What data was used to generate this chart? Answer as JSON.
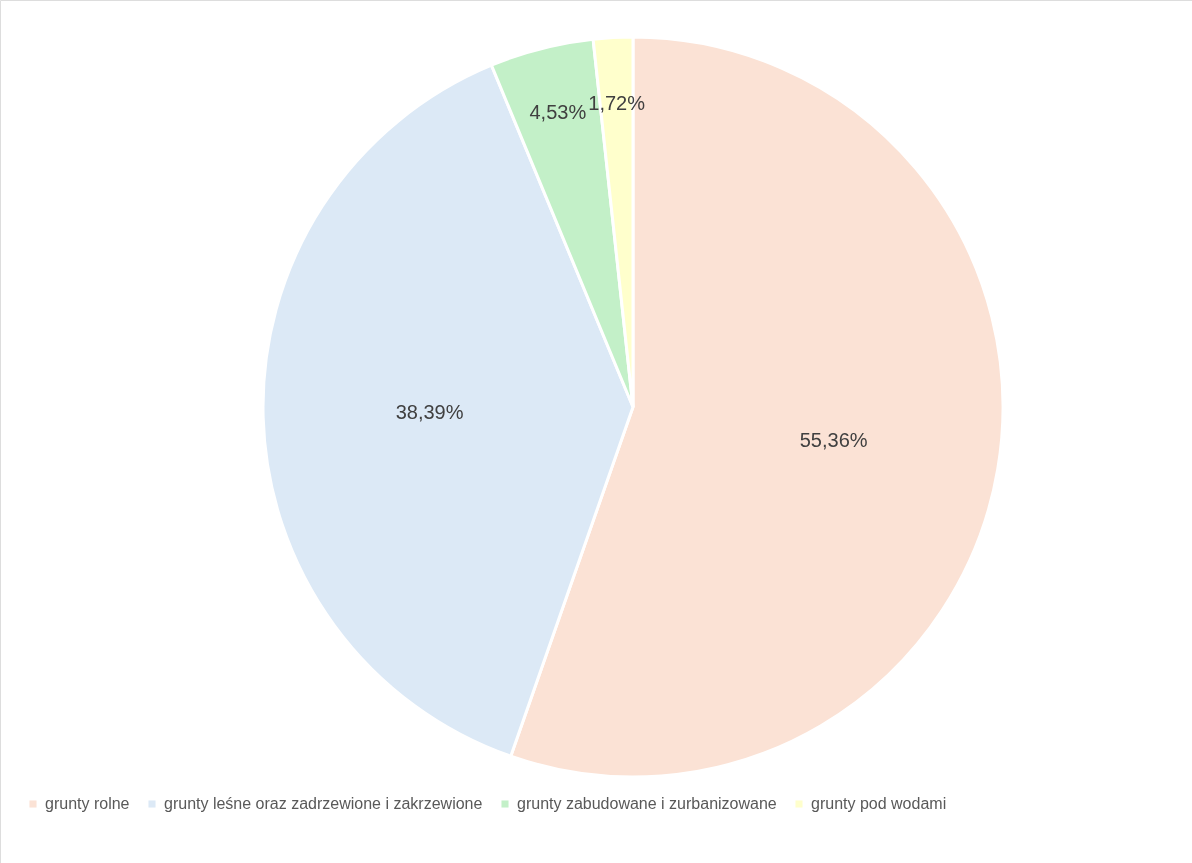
{
  "chart_data": {
    "type": "pie",
    "categories": [
      "grunty rolne",
      "grunty leśne oraz zadrzewione i zakrzewione",
      "grunty zabudowane i zurbanizowane",
      "grunty pod wodami"
    ],
    "values": [
      55.36,
      38.39,
      4.53,
      1.72
    ],
    "value_labels": [
      "55,36%",
      "38,39%",
      "4,53%",
      "1,72%"
    ],
    "colors": [
      "#fbe2d5",
      "#dce9f6",
      "#c3f0c8",
      "#ffffcc"
    ],
    "legend": "bottom"
  }
}
